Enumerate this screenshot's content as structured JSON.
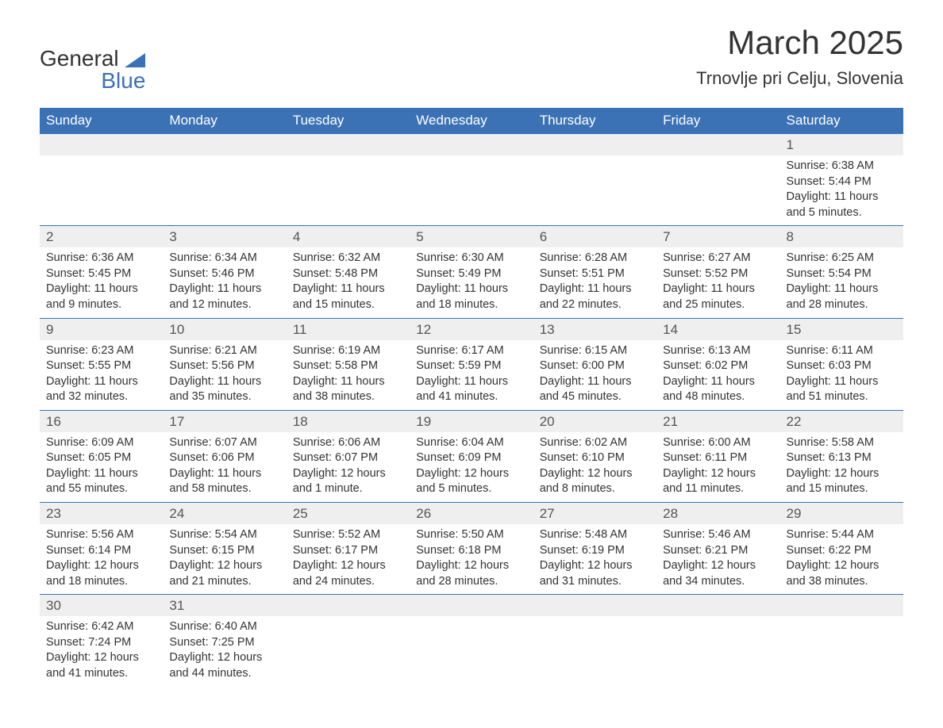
{
  "logo": {
    "line1": "General",
    "line2": "Blue"
  },
  "title": "March 2025",
  "location": "Trnovlje pri Celju, Slovenia",
  "dayHeaders": [
    "Sunday",
    "Monday",
    "Tuesday",
    "Wednesday",
    "Thursday",
    "Friday",
    "Saturday"
  ],
  "colors": {
    "headerBg": "#3b72b5",
    "headerText": "#ffffff",
    "dayNumBg": "#efefef",
    "borderTop": "#3b72b5",
    "bodyText": "#333333",
    "logoAccent": "#3b72b5"
  },
  "weeks": [
    [
      null,
      null,
      null,
      null,
      null,
      null,
      {
        "num": "1",
        "sunrise": "Sunrise: 6:38 AM",
        "sunset": "Sunset: 5:44 PM",
        "daylight": "Daylight: 11 hours and 5 minutes."
      }
    ],
    [
      {
        "num": "2",
        "sunrise": "Sunrise: 6:36 AM",
        "sunset": "Sunset: 5:45 PM",
        "daylight": "Daylight: 11 hours and 9 minutes."
      },
      {
        "num": "3",
        "sunrise": "Sunrise: 6:34 AM",
        "sunset": "Sunset: 5:46 PM",
        "daylight": "Daylight: 11 hours and 12 minutes."
      },
      {
        "num": "4",
        "sunrise": "Sunrise: 6:32 AM",
        "sunset": "Sunset: 5:48 PM",
        "daylight": "Daylight: 11 hours and 15 minutes."
      },
      {
        "num": "5",
        "sunrise": "Sunrise: 6:30 AM",
        "sunset": "Sunset: 5:49 PM",
        "daylight": "Daylight: 11 hours and 18 minutes."
      },
      {
        "num": "6",
        "sunrise": "Sunrise: 6:28 AM",
        "sunset": "Sunset: 5:51 PM",
        "daylight": "Daylight: 11 hours and 22 minutes."
      },
      {
        "num": "7",
        "sunrise": "Sunrise: 6:27 AM",
        "sunset": "Sunset: 5:52 PM",
        "daylight": "Daylight: 11 hours and 25 minutes."
      },
      {
        "num": "8",
        "sunrise": "Sunrise: 6:25 AM",
        "sunset": "Sunset: 5:54 PM",
        "daylight": "Daylight: 11 hours and 28 minutes."
      }
    ],
    [
      {
        "num": "9",
        "sunrise": "Sunrise: 6:23 AM",
        "sunset": "Sunset: 5:55 PM",
        "daylight": "Daylight: 11 hours and 32 minutes."
      },
      {
        "num": "10",
        "sunrise": "Sunrise: 6:21 AM",
        "sunset": "Sunset: 5:56 PM",
        "daylight": "Daylight: 11 hours and 35 minutes."
      },
      {
        "num": "11",
        "sunrise": "Sunrise: 6:19 AM",
        "sunset": "Sunset: 5:58 PM",
        "daylight": "Daylight: 11 hours and 38 minutes."
      },
      {
        "num": "12",
        "sunrise": "Sunrise: 6:17 AM",
        "sunset": "Sunset: 5:59 PM",
        "daylight": "Daylight: 11 hours and 41 minutes."
      },
      {
        "num": "13",
        "sunrise": "Sunrise: 6:15 AM",
        "sunset": "Sunset: 6:00 PM",
        "daylight": "Daylight: 11 hours and 45 minutes."
      },
      {
        "num": "14",
        "sunrise": "Sunrise: 6:13 AM",
        "sunset": "Sunset: 6:02 PM",
        "daylight": "Daylight: 11 hours and 48 minutes."
      },
      {
        "num": "15",
        "sunrise": "Sunrise: 6:11 AM",
        "sunset": "Sunset: 6:03 PM",
        "daylight": "Daylight: 11 hours and 51 minutes."
      }
    ],
    [
      {
        "num": "16",
        "sunrise": "Sunrise: 6:09 AM",
        "sunset": "Sunset: 6:05 PM",
        "daylight": "Daylight: 11 hours and 55 minutes."
      },
      {
        "num": "17",
        "sunrise": "Sunrise: 6:07 AM",
        "sunset": "Sunset: 6:06 PM",
        "daylight": "Daylight: 11 hours and 58 minutes."
      },
      {
        "num": "18",
        "sunrise": "Sunrise: 6:06 AM",
        "sunset": "Sunset: 6:07 PM",
        "daylight": "Daylight: 12 hours and 1 minute."
      },
      {
        "num": "19",
        "sunrise": "Sunrise: 6:04 AM",
        "sunset": "Sunset: 6:09 PM",
        "daylight": "Daylight: 12 hours and 5 minutes."
      },
      {
        "num": "20",
        "sunrise": "Sunrise: 6:02 AM",
        "sunset": "Sunset: 6:10 PM",
        "daylight": "Daylight: 12 hours and 8 minutes."
      },
      {
        "num": "21",
        "sunrise": "Sunrise: 6:00 AM",
        "sunset": "Sunset: 6:11 PM",
        "daylight": "Daylight: 12 hours and 11 minutes."
      },
      {
        "num": "22",
        "sunrise": "Sunrise: 5:58 AM",
        "sunset": "Sunset: 6:13 PM",
        "daylight": "Daylight: 12 hours and 15 minutes."
      }
    ],
    [
      {
        "num": "23",
        "sunrise": "Sunrise: 5:56 AM",
        "sunset": "Sunset: 6:14 PM",
        "daylight": "Daylight: 12 hours and 18 minutes."
      },
      {
        "num": "24",
        "sunrise": "Sunrise: 5:54 AM",
        "sunset": "Sunset: 6:15 PM",
        "daylight": "Daylight: 12 hours and 21 minutes."
      },
      {
        "num": "25",
        "sunrise": "Sunrise: 5:52 AM",
        "sunset": "Sunset: 6:17 PM",
        "daylight": "Daylight: 12 hours and 24 minutes."
      },
      {
        "num": "26",
        "sunrise": "Sunrise: 5:50 AM",
        "sunset": "Sunset: 6:18 PM",
        "daylight": "Daylight: 12 hours and 28 minutes."
      },
      {
        "num": "27",
        "sunrise": "Sunrise: 5:48 AM",
        "sunset": "Sunset: 6:19 PM",
        "daylight": "Daylight: 12 hours and 31 minutes."
      },
      {
        "num": "28",
        "sunrise": "Sunrise: 5:46 AM",
        "sunset": "Sunset: 6:21 PM",
        "daylight": "Daylight: 12 hours and 34 minutes."
      },
      {
        "num": "29",
        "sunrise": "Sunrise: 5:44 AM",
        "sunset": "Sunset: 6:22 PM",
        "daylight": "Daylight: 12 hours and 38 minutes."
      }
    ],
    [
      {
        "num": "30",
        "sunrise": "Sunrise: 6:42 AM",
        "sunset": "Sunset: 7:24 PM",
        "daylight": "Daylight: 12 hours and 41 minutes."
      },
      {
        "num": "31",
        "sunrise": "Sunrise: 6:40 AM",
        "sunset": "Sunset: 7:25 PM",
        "daylight": "Daylight: 12 hours and 44 minutes."
      },
      null,
      null,
      null,
      null,
      null
    ]
  ]
}
